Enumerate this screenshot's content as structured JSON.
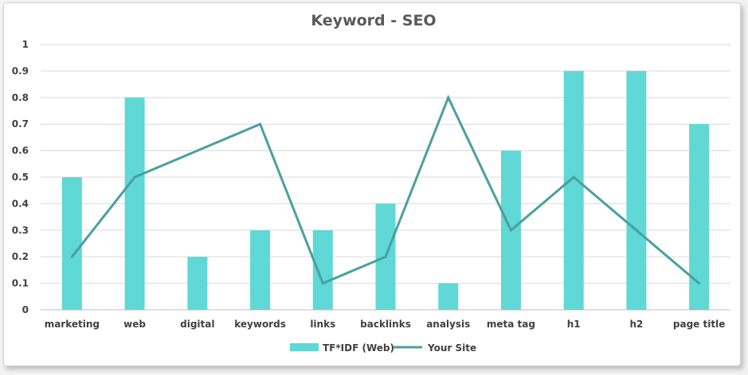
{
  "chart_data": {
    "type": "bar",
    "title": "Keyword - SEO",
    "categories": [
      "marketing",
      "web",
      "digital",
      "keywords",
      "links",
      "backlinks",
      "analysis",
      "meta tag",
      "h1",
      "h2",
      "page title"
    ],
    "series": [
      {
        "name": "TF*IDF (Web)",
        "type": "bar",
        "color": "#5fd8d6",
        "values": [
          0.5,
          0.8,
          0.2,
          0.3,
          0.3,
          0.4,
          0.1,
          0.6,
          0.9,
          0.9,
          0.7
        ]
      },
      {
        "name": "Your Site",
        "type": "line",
        "color": "#4a9fa1",
        "values": [
          0.2,
          0.5,
          0.6,
          0.7,
          0.1,
          0.2,
          0.8,
          0.3,
          0.5,
          0.3,
          0.1
        ]
      }
    ],
    "y_ticks": [
      "0",
      "0.1",
      "0.2",
      "0.3",
      "0.4",
      "0.5",
      "0.6",
      "0.7",
      "0.8",
      "0.9",
      "1"
    ],
    "ylim": [
      0,
      1
    ],
    "grid": true,
    "legend": "bottom"
  }
}
